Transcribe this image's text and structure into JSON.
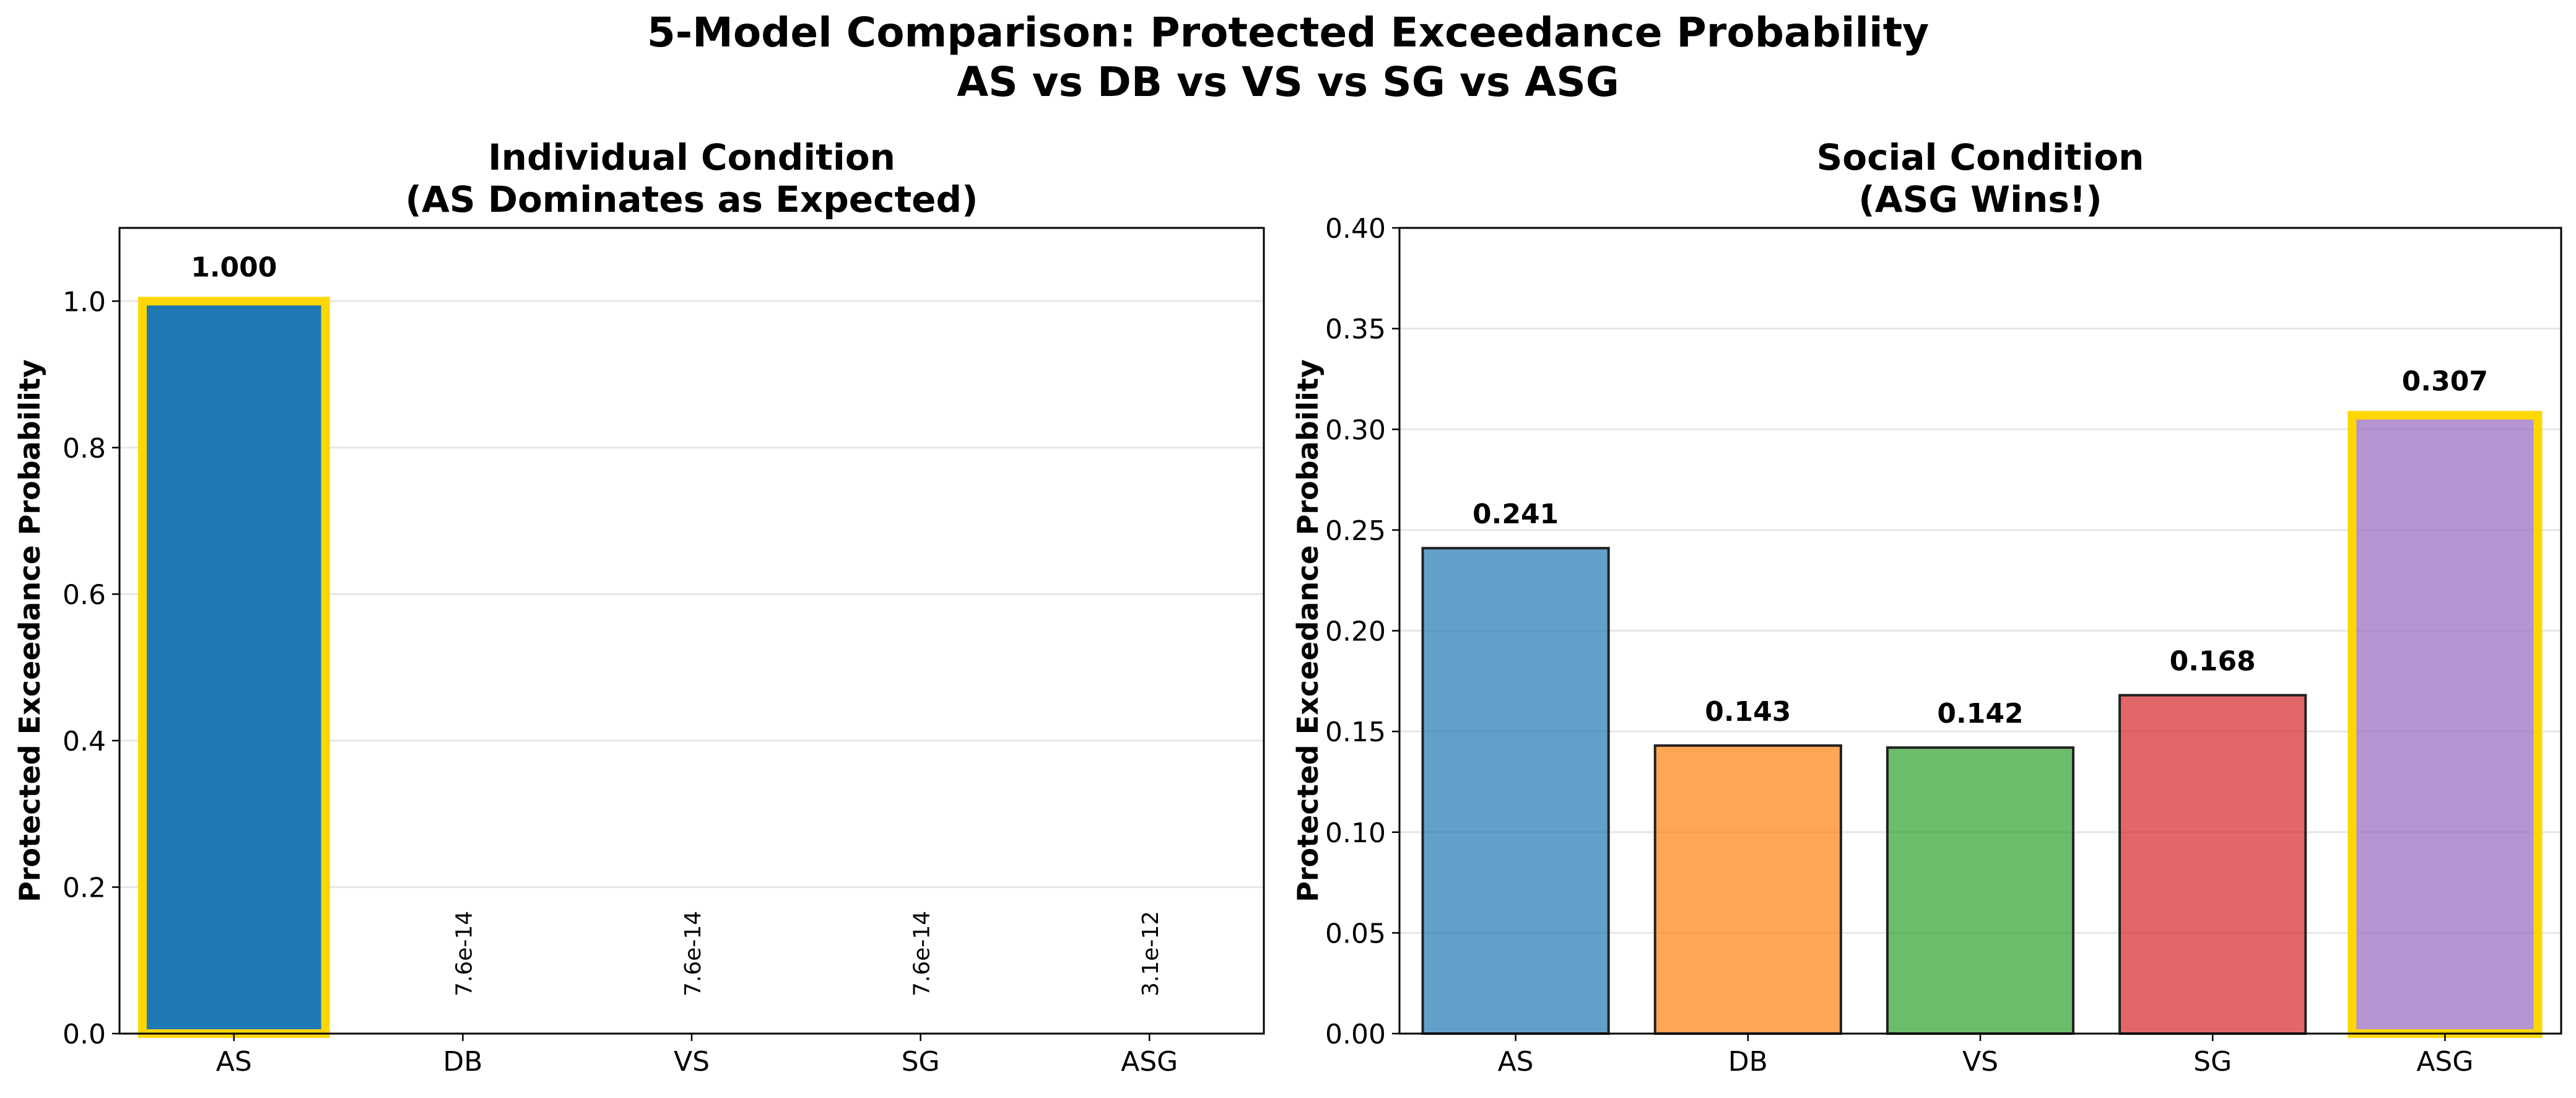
{
  "figure": {
    "title_line1": "5-Model Comparison: Protected Exceedance Probability",
    "title_line2": "AS vs DB vs VS vs SG vs ASG"
  },
  "chart_data": [
    {
      "type": "bar",
      "title_line1": "Individual Condition",
      "title_line2": "(AS Dominates as Expected)",
      "xlabel": "",
      "ylabel": "Protected Exceedance Probability",
      "categories": [
        "AS",
        "DB",
        "VS",
        "SG",
        "ASG"
      ],
      "values": [
        1.0,
        7.6e-14,
        7.6e-14,
        7.6e-14,
        3.1e-12
      ],
      "value_labels": [
        "1.000",
        "7.6e-14",
        "7.6e-14",
        "7.6e-14",
        "3.1e-12"
      ],
      "ylim": [
        0,
        1.1
      ],
      "yticks": [
        0.0,
        0.2,
        0.4,
        0.6,
        0.8,
        1.0
      ],
      "ytick_labels": [
        "0.0",
        "0.2",
        "0.4",
        "0.6",
        "0.8",
        "1.0"
      ],
      "colors": [
        "#1f77b4",
        "#1f77b4",
        "#1f77b4",
        "#1f77b4",
        "#1f77b4"
      ],
      "highlight": "AS",
      "highlight_color": "#ffd700",
      "grid": true
    },
    {
      "type": "bar",
      "title_line1": "Social Condition",
      "title_line2": "(ASG Wins!)",
      "xlabel": "",
      "ylabel": "Protected Exceedance Probability",
      "categories": [
        "AS",
        "DB",
        "VS",
        "SG",
        "ASG"
      ],
      "values": [
        0.241,
        0.143,
        0.142,
        0.168,
        0.307
      ],
      "value_labels": [
        "0.241",
        "0.143",
        "0.142",
        "0.168",
        "0.307"
      ],
      "ylim": [
        0,
        0.4
      ],
      "yticks": [
        0.0,
        0.05,
        0.1,
        0.15,
        0.2,
        0.25,
        0.3,
        0.35,
        0.4
      ],
      "ytick_labels": [
        "0.00",
        "0.05",
        "0.10",
        "0.15",
        "0.20",
        "0.25",
        "0.30",
        "0.35",
        "0.40"
      ],
      "colors": [
        "#1f77b4",
        "#ff7f0e",
        "#2ca02c",
        "#d62728",
        "#9467bd"
      ],
      "highlight": "ASG",
      "highlight_color": "#ffd700",
      "grid": true
    }
  ]
}
